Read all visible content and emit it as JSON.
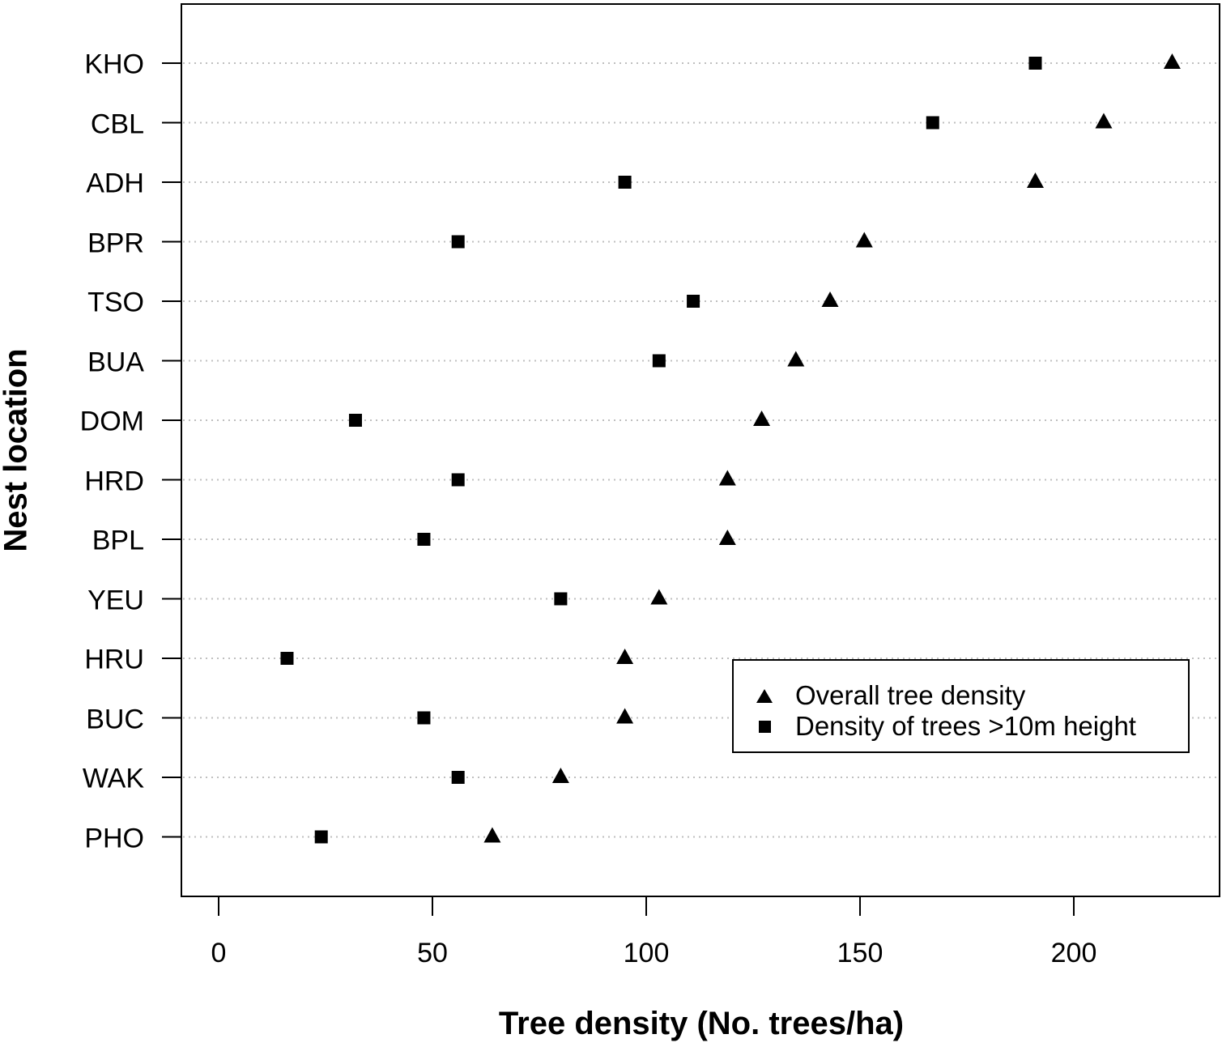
{
  "chart_data": {
    "type": "scatter",
    "subtype": "dot-plot",
    "title": "",
    "xlabel": "Tree density (No. trees/ha)",
    "ylabel": "Nest location",
    "xlim": [
      -9,
      234
    ],
    "xticks": [
      0,
      50,
      100,
      150,
      200
    ],
    "categories": [
      "KHO",
      "CBL",
      "ADH",
      "BPR",
      "TSO",
      "BUA",
      "DOM",
      "HRD",
      "BPL",
      "YEU",
      "HRU",
      "BUC",
      "WAK",
      "PHO"
    ],
    "series": [
      {
        "name": "Overall tree density",
        "marker": "triangle",
        "color": "#000000",
        "values": [
          223,
          207,
          191,
          151,
          143,
          135,
          127,
          119,
          119,
          103,
          95,
          95,
          80,
          64
        ]
      },
      {
        "name": "Density of trees >10m height",
        "marker": "square",
        "color": "#000000",
        "values": [
          191,
          167,
          95,
          56,
          111,
          103,
          32,
          56,
          48,
          80,
          16,
          48,
          56,
          24
        ]
      }
    ],
    "grid": "horizontal dotted lines at each category",
    "legend_position": "lower right inside plot"
  },
  "axes": {
    "x_title": "Tree density (No. trees/ha)",
    "y_title": "Nest location",
    "x_tick_labels": [
      "0",
      "50",
      "100",
      "150",
      "200"
    ],
    "y_tick_labels": [
      "KHO",
      "CBL",
      "ADH",
      "BPR",
      "TSO",
      "BUA",
      "DOM",
      "HRD",
      "BPL",
      "YEU",
      "HRU",
      "BUC",
      "WAK",
      "PHO"
    ]
  },
  "legend": {
    "items": [
      {
        "label": "Overall tree density",
        "icon": "triangle-marker-icon"
      },
      {
        "label": "Density of trees >10m height",
        "icon": "square-marker-icon"
      }
    ]
  },
  "colors": {
    "marker": "#000000",
    "gridline": "#bfbfbf",
    "axis": "#000000",
    "background": "#ffffff"
  }
}
